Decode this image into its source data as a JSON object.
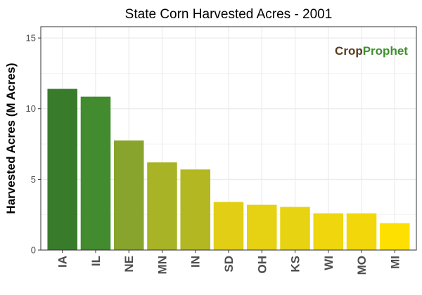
{
  "chart_data": {
    "type": "bar",
    "title": "State Corn Harvested Acres - 2001",
    "xlabel": "",
    "ylabel": "Harvested Acres (M Acres)",
    "ylim": [
      0,
      15.8
    ],
    "yticks": [
      0,
      5,
      10,
      15
    ],
    "grid": true,
    "legend": "none",
    "categories": [
      "IA",
      "IL",
      "NE",
      "MN",
      "IN",
      "SD",
      "OH",
      "KS",
      "WI",
      "MO",
      "MI"
    ],
    "values": [
      11.4,
      10.85,
      7.75,
      6.2,
      5.7,
      3.4,
      3.2,
      3.05,
      2.6,
      2.6,
      1.9
    ],
    "colors": [
      "#387c2b",
      "#428b2e",
      "#88a42c",
      "#a8b325",
      "#b3b722",
      "#e2ce15",
      "#e6d112",
      "#e8d313",
      "#efd60d",
      "#f2d80a",
      "#fddf00"
    ]
  },
  "logo": {
    "part1": "Crop",
    "part2": "Prophet"
  }
}
